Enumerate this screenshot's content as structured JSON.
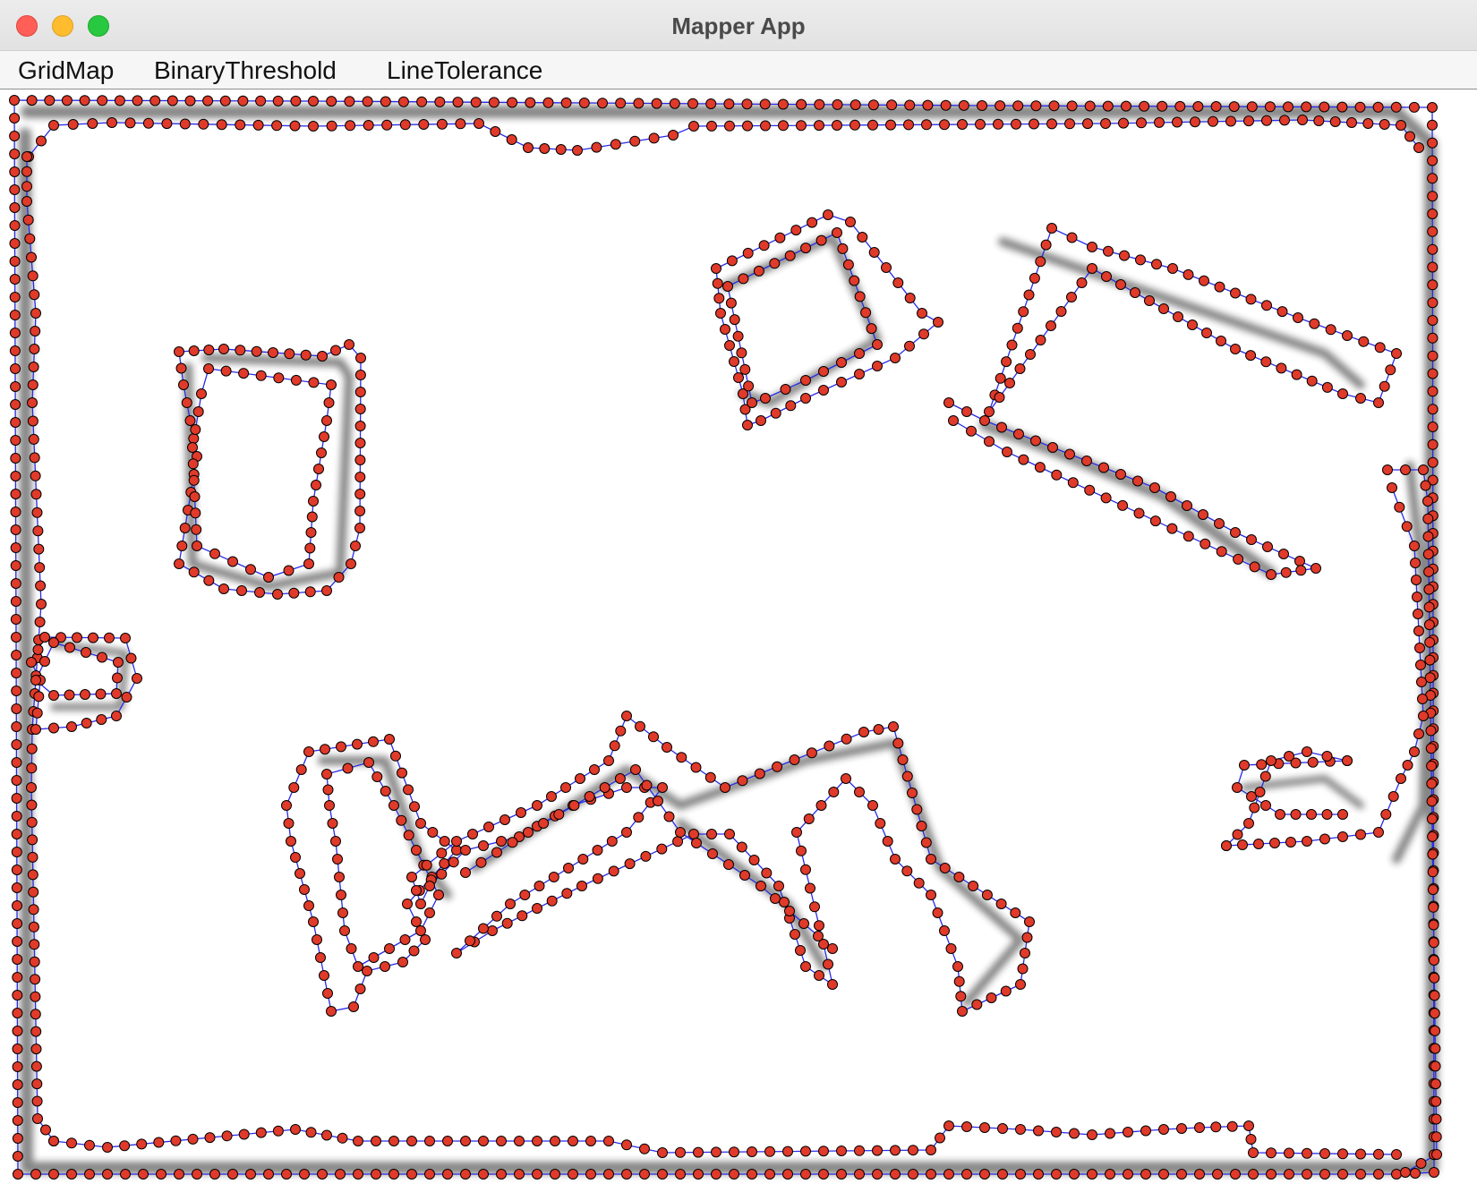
{
  "window": {
    "title": "Mapper App"
  },
  "menu": {
    "items": [
      "GridMap",
      "BinaryThreshold",
      "LineTolerance"
    ]
  },
  "colors": {
    "line": "#2a2ae8",
    "point_fill": "#e03a2a",
    "point_stroke": "#000000",
    "wall_shade": "#222222"
  }
}
